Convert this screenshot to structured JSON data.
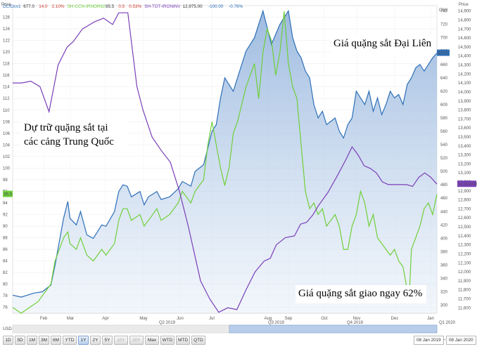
{
  "header": {
    "items": [
      {
        "text": "DCIOcv1",
        "color": "#2e6fb8"
      },
      {
        "text": "677.0",
        "color": "#333333"
      },
      {
        "text": "14.0",
        "color": "#d03b2f"
      },
      {
        "text": "2.10%",
        "color": "#d03b2f"
      },
      {
        "text": "SH-CCN-IRNOR62",
        "color": "#6fcf3a"
      },
      {
        "text": "95.5",
        "color": "#333333"
      },
      {
        "text": "0.5",
        "color": "#d03b2f"
      },
      {
        "text": "0.53%",
        "color": "#d03b2f"
      },
      {
        "text": "SH-TOT-IRONINV",
        "color": "#7a3fb8"
      },
      {
        "text": "12,975.00",
        "color": "#333333"
      },
      {
        "text": "-100.00",
        "color": "#2e6fb8"
      },
      {
        "text": "-0.76%",
        "color": "#2e6fb8"
      }
    ],
    "right_label": "Price",
    "right_sub": "CNY",
    "left_label": "Price",
    "left_sub": "USD"
  },
  "annotations": {
    "dalian": "Giá quặng sắt Đại Liên",
    "stocks_line1": "Dự trữ quặng sắt tại",
    "stocks_line2": "các cảng Trung Quốc",
    "spot": "Giá quặng sắt giao ngay 62%"
  },
  "badges": {
    "usd": {
      "text": "95.5",
      "color": "#6fcf3a"
    },
    "cny": {
      "text": "677.0",
      "color": "#2e6fb8"
    },
    "inv": {
      "text": "12,975.00",
      "color": "#7a3fb8"
    }
  },
  "toolbar": {
    "buttons": [
      "1D",
      "5D",
      "1M",
      "3M",
      "6M",
      "YTD",
      "1Y",
      "2Y",
      "5Y",
      "10Y",
      "20Y",
      "Max",
      "WTD",
      "MTD",
      "QTD"
    ],
    "active": "1Y",
    "disabled": [
      "10Y",
      "20Y"
    ],
    "date_from": "08 Jan 2019",
    "date_sep": "→",
    "date_to": "08 Jan 2020"
  },
  "chart_data": {
    "type": "line",
    "x_labels": [
      "Feb",
      "Mar",
      "Apr",
      "May",
      "Q2 2019",
      "Jun",
      "Jul",
      "Q3 2019",
      "Aug",
      "Sep",
      "Oct",
      "Q4 2019",
      "Nov",
      "Dec",
      "Jan",
      "Q1 2020"
    ],
    "y_left_ticks": [
      76,
      78,
      80,
      82,
      84,
      86,
      88,
      90,
      92,
      94,
      96,
      98,
      100,
      102,
      104,
      106,
      108,
      110,
      112,
      114,
      116,
      118,
      120,
      122,
      124,
      126
    ],
    "y_left_range": [
      75,
      128
    ],
    "y_right_cny_ticks": [
      300,
      320,
      340,
      360,
      380,
      400,
      420,
      440,
      460,
      480,
      500,
      520,
      540,
      560,
      580,
      600,
      620,
      640,
      660,
      680,
      700,
      720,
      740
    ],
    "y_right_cny_range": [
      288,
      748
    ],
    "y_right_inv_ticks": [
      11600,
      11700,
      11800,
      11900,
      12000,
      12100,
      12200,
      12300,
      12400,
      12500,
      12600,
      12700,
      12800,
      12900,
      13000,
      13100,
      13200,
      13300,
      13400,
      13500,
      13600,
      13700,
      13800,
      13900,
      14000,
      14100,
      14200,
      14300,
      14400,
      14500,
      14600,
      14700,
      14800,
      14900
    ],
    "y_right_inv_range": [
      11540,
      14960
    ],
    "series": [
      {
        "name": "DCIOcv1",
        "axis": "cny",
        "color": "#2e6fb8",
        "fill": true,
        "points": [
          [
            0,
            315
          ],
          [
            0.02,
            312
          ],
          [
            0.05,
            318
          ],
          [
            0.07,
            320
          ],
          [
            0.09,
            330
          ],
          [
            0.1,
            360
          ],
          [
            0.11,
            395
          ],
          [
            0.12,
            430
          ],
          [
            0.13,
            455
          ],
          [
            0.135,
            430
          ],
          [
            0.15,
            420
          ],
          [
            0.16,
            440
          ],
          [
            0.175,
            405
          ],
          [
            0.19,
            400
          ],
          [
            0.21,
            420
          ],
          [
            0.22,
            418
          ],
          [
            0.24,
            440
          ],
          [
            0.25,
            470
          ],
          [
            0.26,
            480
          ],
          [
            0.27,
            478
          ],
          [
            0.28,
            462
          ],
          [
            0.3,
            470
          ],
          [
            0.31,
            450
          ],
          [
            0.32,
            462
          ],
          [
            0.34,
            470
          ],
          [
            0.35,
            458
          ],
          [
            0.37,
            462
          ],
          [
            0.39,
            474
          ],
          [
            0.4,
            485
          ],
          [
            0.42,
            478
          ],
          [
            0.43,
            500
          ],
          [
            0.45,
            510
          ],
          [
            0.47,
            560
          ],
          [
            0.48,
            570
          ],
          [
            0.49,
            610
          ],
          [
            0.5,
            640
          ],
          [
            0.51,
            630
          ],
          [
            0.52,
            620
          ],
          [
            0.53,
            640
          ],
          [
            0.55,
            680
          ],
          [
            0.57,
            700
          ],
          [
            0.59,
            740
          ],
          [
            0.61,
            690
          ],
          [
            0.63,
            720
          ],
          [
            0.65,
            740
          ],
          [
            0.66,
            700
          ],
          [
            0.67,
            680
          ],
          [
            0.68,
            670
          ],
          [
            0.69,
            650
          ],
          [
            0.7,
            640
          ],
          [
            0.71,
            600
          ],
          [
            0.72,
            580
          ],
          [
            0.73,
            590
          ],
          [
            0.74,
            570
          ],
          [
            0.76,
            580
          ],
          [
            0.77,
            560
          ],
          [
            0.78,
            550
          ],
          [
            0.79,
            570
          ],
          [
            0.8,
            580
          ],
          [
            0.81,
            620
          ],
          [
            0.82,
            610
          ],
          [
            0.83,
            600
          ],
          [
            0.84,
            620
          ],
          [
            0.85,
            590
          ],
          [
            0.86,
            610
          ],
          [
            0.87,
            585
          ],
          [
            0.88,
            600
          ],
          [
            0.89,
            620
          ],
          [
            0.9,
            610
          ],
          [
            0.91,
            615
          ],
          [
            0.92,
            600
          ],
          [
            0.93,
            630
          ],
          [
            0.94,
            640
          ],
          [
            0.95,
            655
          ],
          [
            0.96,
            660
          ],
          [
            0.97,
            650
          ],
          [
            0.98,
            660
          ],
          [
            0.99,
            670
          ],
          [
            1.0,
            677
          ]
        ]
      },
      {
        "name": "SH-CCN-IRNOR62",
        "axis": "usd",
        "color": "#6fcf3a",
        "fill": false,
        "points": [
          [
            0,
            76
          ],
          [
            0.02,
            75
          ],
          [
            0.04,
            76
          ],
          [
            0.06,
            77
          ],
          [
            0.08,
            79
          ],
          [
            0.09,
            80
          ],
          [
            0.1,
            84
          ],
          [
            0.11,
            86
          ],
          [
            0.12,
            88
          ],
          [
            0.13,
            89
          ],
          [
            0.135,
            87
          ],
          [
            0.15,
            86
          ],
          [
            0.16,
            88
          ],
          [
            0.175,
            85
          ],
          [
            0.19,
            84
          ],
          [
            0.21,
            86
          ],
          [
            0.22,
            85
          ],
          [
            0.24,
            87
          ],
          [
            0.25,
            91
          ],
          [
            0.26,
            93
          ],
          [
            0.27,
            93
          ],
          [
            0.28,
            91
          ],
          [
            0.3,
            92
          ],
          [
            0.31,
            90
          ],
          [
            0.32,
            91
          ],
          [
            0.34,
            93
          ],
          [
            0.35,
            91
          ],
          [
            0.37,
            92
          ],
          [
            0.39,
            94
          ],
          [
            0.4,
            96
          ],
          [
            0.42,
            94
          ],
          [
            0.43,
            96
          ],
          [
            0.45,
            98
          ],
          [
            0.46,
            104
          ],
          [
            0.47,
            108
          ],
          [
            0.48,
            104
          ],
          [
            0.49,
            100
          ],
          [
            0.5,
            97
          ],
          [
            0.51,
            100
          ],
          [
            0.52,
            106
          ],
          [
            0.53,
            108
          ],
          [
            0.55,
            114
          ],
          [
            0.57,
            118
          ],
          [
            0.58,
            112
          ],
          [
            0.59,
            120
          ],
          [
            0.6,
            124
          ],
          [
            0.61,
            122
          ],
          [
            0.62,
            116
          ],
          [
            0.63,
            120
          ],
          [
            0.64,
            127
          ],
          [
            0.65,
            118
          ],
          [
            0.66,
            114
          ],
          [
            0.67,
            112
          ],
          [
            0.68,
            104
          ],
          [
            0.69,
            96
          ],
          [
            0.7,
            93
          ],
          [
            0.71,
            94
          ],
          [
            0.72,
            92
          ],
          [
            0.73,
            93
          ],
          [
            0.74,
            90
          ],
          [
            0.76,
            92
          ],
          [
            0.77,
            90
          ],
          [
            0.78,
            86
          ],
          [
            0.79,
            86
          ],
          [
            0.8,
            90
          ],
          [
            0.81,
            92
          ],
          [
            0.82,
            96
          ],
          [
            0.83,
            94
          ],
          [
            0.84,
            90
          ],
          [
            0.85,
            92
          ],
          [
            0.86,
            88
          ],
          [
            0.87,
            87
          ],
          [
            0.88,
            86
          ],
          [
            0.89,
            85
          ],
          [
            0.9,
            86
          ],
          [
            0.91,
            84
          ],
          [
            0.92,
            83
          ],
          [
            0.93,
            79
          ],
          [
            0.935,
            78
          ],
          [
            0.94,
            86
          ],
          [
            0.95,
            88
          ],
          [
            0.96,
            90
          ],
          [
            0.97,
            93
          ],
          [
            0.98,
            94
          ],
          [
            0.99,
            92
          ],
          [
            1.0,
            95.5
          ]
        ]
      },
      {
        "name": "SH-TOT-IRONINV",
        "axis": "inv",
        "color": "#7a3fb8",
        "fill": false,
        "points": [
          [
            0,
            14100
          ],
          [
            0.03,
            14100
          ],
          [
            0.06,
            14120
          ],
          [
            0.09,
            14060
          ],
          [
            0.12,
            13780
          ],
          [
            0.15,
            14300
          ],
          [
            0.18,
            14500
          ],
          [
            0.2,
            14560
          ],
          [
            0.23,
            14700
          ],
          [
            0.27,
            14780
          ],
          [
            0.3,
            14820
          ],
          [
            0.33,
            14750
          ],
          [
            0.35,
            14880
          ],
          [
            0.38,
            14880
          ],
          [
            0.41,
            14060
          ],
          [
            0.43,
            13800
          ],
          [
            0.46,
            13500
          ],
          [
            0.49,
            13350
          ],
          [
            0.52,
            13220
          ],
          [
            0.55,
            12900
          ],
          [
            0.58,
            12500
          ],
          [
            0.6,
            12200
          ],
          [
            0.62,
            11900
          ],
          [
            0.65,
            11700
          ],
          [
            0.68,
            11550
          ],
          [
            0.71,
            11600
          ],
          [
            0.74,
            11580
          ],
          [
            0.77,
            11800
          ],
          [
            0.8,
            12000
          ],
          [
            0.83,
            12120
          ],
          [
            0.85,
            12150
          ],
          [
            0.87,
            12300
          ],
          [
            0.9,
            12380
          ],
          [
            0.93,
            12400
          ],
          [
            0.95,
            12530
          ],
          [
            0.97,
            12550
          ],
          [
            0.99,
            12630
          ],
          [
            1.01,
            12740
          ],
          [
            1.04,
            12880
          ],
          [
            1.07,
            13060
          ],
          [
            1.1,
            13250
          ],
          [
            1.12,
            13390
          ],
          [
            1.14,
            13300
          ],
          [
            1.16,
            13180
          ],
          [
            1.18,
            13150
          ],
          [
            1.2,
            13100
          ],
          [
            1.22,
            13000
          ],
          [
            1.24,
            12970
          ],
          [
            1.27,
            12970
          ],
          [
            1.3,
            12970
          ],
          [
            1.32,
            12950
          ],
          [
            1.34,
            13050
          ],
          [
            1.36,
            13100
          ],
          [
            1.38,
            13050
          ],
          [
            1.4,
            12975
          ]
        ]
      }
    ],
    "note": "x positions are fractions of the trading period; the investory series extends to the last candle at x=1.0 (scaled)"
  }
}
